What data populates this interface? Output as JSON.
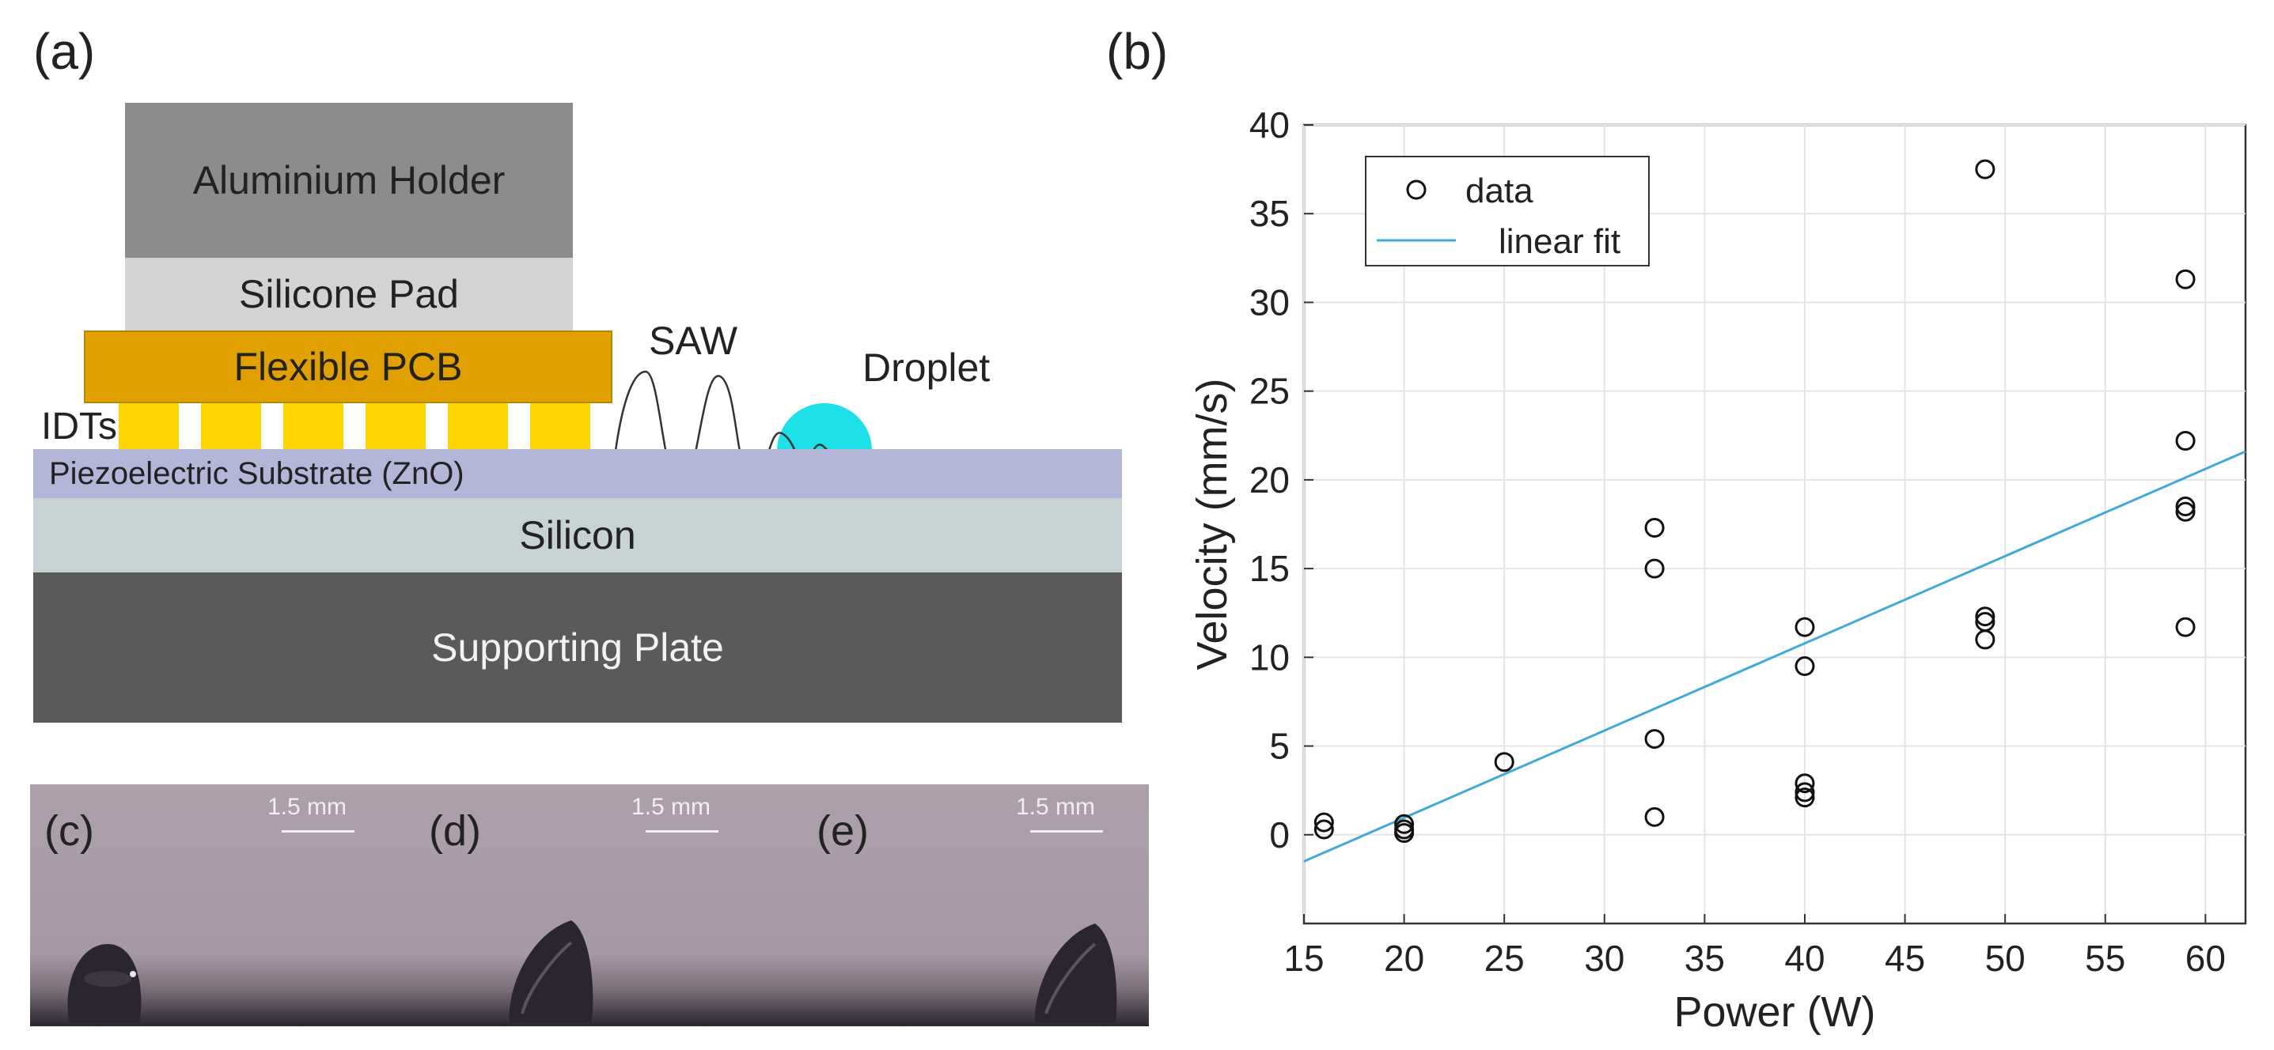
{
  "panel_labels": {
    "a": "(a)",
    "b": "(b)",
    "c": "(c)",
    "d": "(d)",
    "e": "(e)"
  },
  "schematic": {
    "holder": "Aluminium Holder",
    "pad": "Silicone Pad",
    "pcb": "Flexible PCB",
    "idts": "IDTs",
    "substrate": "Piezoelectric Substrate (ZnO)",
    "silicon": "Silicon",
    "plate": "Supporting Plate",
    "saw": "SAW",
    "droplet": "Droplet"
  },
  "photos": {
    "scale_label": "1.5 mm"
  },
  "colors": {
    "holder": "#8c8c8c",
    "pad": "#d3d3d3",
    "pcb": "#e0a100",
    "idt": "#ffd400",
    "substrate": "#b4b6d8",
    "silicon": "#c6d2d4",
    "plate": "#5a5a5a",
    "droplet": "#1ee0e8",
    "fit_line": "#3fa9d8",
    "photo_bg": "#a898a6"
  },
  "chart_data": {
    "type": "scatter",
    "title": "",
    "xlabel": "Power (W)",
    "ylabel": "Velocity (mm/s)",
    "xlim": [
      15,
      62
    ],
    "ylim": [
      -5,
      40
    ],
    "xticks": [
      "15",
      "20",
      "25",
      "30",
      "35",
      "40",
      "45",
      "50",
      "55",
      "60"
    ],
    "yticks": [
      "0",
      "5",
      "10",
      "15",
      "20",
      "25",
      "30",
      "35",
      "40"
    ],
    "grid": true,
    "legend_position": "top-left",
    "series": [
      {
        "name": "data",
        "marker": "open-circle",
        "points": [
          [
            16,
            0.7
          ],
          [
            16,
            0.3
          ],
          [
            20,
            0.6
          ],
          [
            20,
            0.3
          ],
          [
            20,
            0.1
          ],
          [
            25,
            4.1
          ],
          [
            32.5,
            17.3
          ],
          [
            32.5,
            15.0
          ],
          [
            32.5,
            5.4
          ],
          [
            32.5,
            1.0
          ],
          [
            40,
            11.7
          ],
          [
            40,
            9.5
          ],
          [
            40,
            2.9
          ],
          [
            40,
            2.4
          ],
          [
            40,
            2.1
          ],
          [
            49,
            37.5
          ],
          [
            49,
            12.3
          ],
          [
            49,
            12.0
          ],
          [
            49,
            11.0
          ],
          [
            59,
            31.3
          ],
          [
            59,
            22.2
          ],
          [
            59,
            18.5
          ],
          [
            59,
            18.2
          ],
          [
            59,
            11.7
          ]
        ]
      },
      {
        "name": "linear fit",
        "marker": "line",
        "points": [
          [
            15,
            -1.5
          ],
          [
            62,
            21.6
          ]
        ]
      }
    ]
  }
}
